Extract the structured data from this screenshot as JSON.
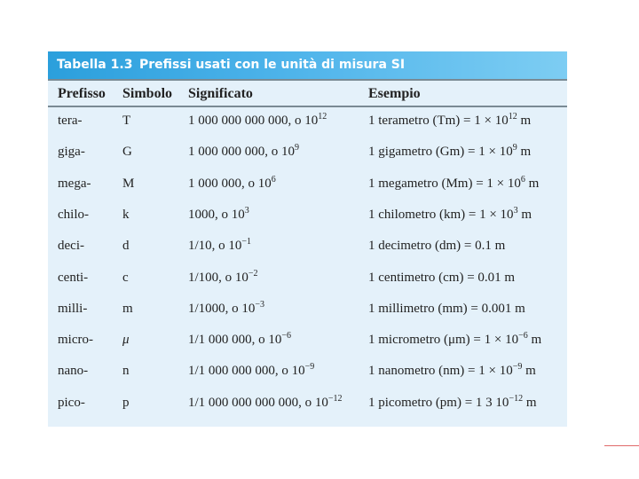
{
  "table": {
    "number": "Tabella 1.3",
    "title": "Prefissi usati con le unità di misura SI",
    "headers": [
      "Prefisso",
      "Simbolo",
      "Significato",
      "Esempio"
    ],
    "rows": [
      {
        "prefix": "tera-",
        "symbol": "T",
        "meaning": "1 000 000 000 000, o 10",
        "meaning_exp": "12",
        "example": "1 terametro (Tm) = 1 × 10",
        "example_exp": "12",
        "example_unit": " m"
      },
      {
        "prefix": "giga-",
        "symbol": "G",
        "meaning": "1 000 000 000, o 10",
        "meaning_exp": "9",
        "example": "1 gigametro (Gm) = 1 × 10",
        "example_exp": "9",
        "example_unit": " m"
      },
      {
        "prefix": "mega-",
        "symbol": "M",
        "meaning": "1 000 000, o 10",
        "meaning_exp": "6",
        "example": "1 megametro (Mm) = 1 × 10",
        "example_exp": "6",
        "example_unit": " m"
      },
      {
        "prefix": "chilo-",
        "symbol": "k",
        "meaning": "1000, o 10",
        "meaning_exp": "3",
        "example": "1 chilometro (km) = 1 × 10",
        "example_exp": "3",
        "example_unit": " m"
      },
      {
        "prefix": "deci-",
        "symbol": "d",
        "meaning": "1/10, o 10",
        "meaning_exp": "−1",
        "example": "1 decimetro (dm) = 0.1 m",
        "example_exp": "",
        "example_unit": ""
      },
      {
        "prefix": "centi-",
        "symbol": "c",
        "meaning": "1/100, o 10",
        "meaning_exp": "−2",
        "example": "1 centimetro (cm) = 0.01 m",
        "example_exp": "",
        "example_unit": ""
      },
      {
        "prefix": "milli-",
        "symbol": "m",
        "meaning": "1/1000, o 10",
        "meaning_exp": "−3",
        "example": "1 millimetro (mm) = 0.001 m",
        "example_exp": "",
        "example_unit": ""
      },
      {
        "prefix": "micro-",
        "symbol": "μ",
        "meaning": "1/1 000 000, o 10",
        "meaning_exp": "−6",
        "example": "1 micrometro (μm) = 1 × 10",
        "example_exp": "−6",
        "example_unit": " m"
      },
      {
        "prefix": "nano-",
        "symbol": "n",
        "meaning": "1/1 000 000 000, o 10",
        "meaning_exp": "−9",
        "example": "1 nanometro (nm) = 1 × 10",
        "example_exp": "−9",
        "example_unit": " m"
      },
      {
        "prefix": "pico-",
        "symbol": "p",
        "meaning": "1/1 000 000 000 000, o 10",
        "meaning_exp": "−12",
        "example": "1 picometro (pm) = 1 3 10",
        "example_exp": "−12",
        "example_unit": " m"
      }
    ]
  },
  "colors": {
    "title_bar": "#2b9fdc",
    "table_bg": "#e4f1fa",
    "accent_line": "#e06a6a"
  }
}
